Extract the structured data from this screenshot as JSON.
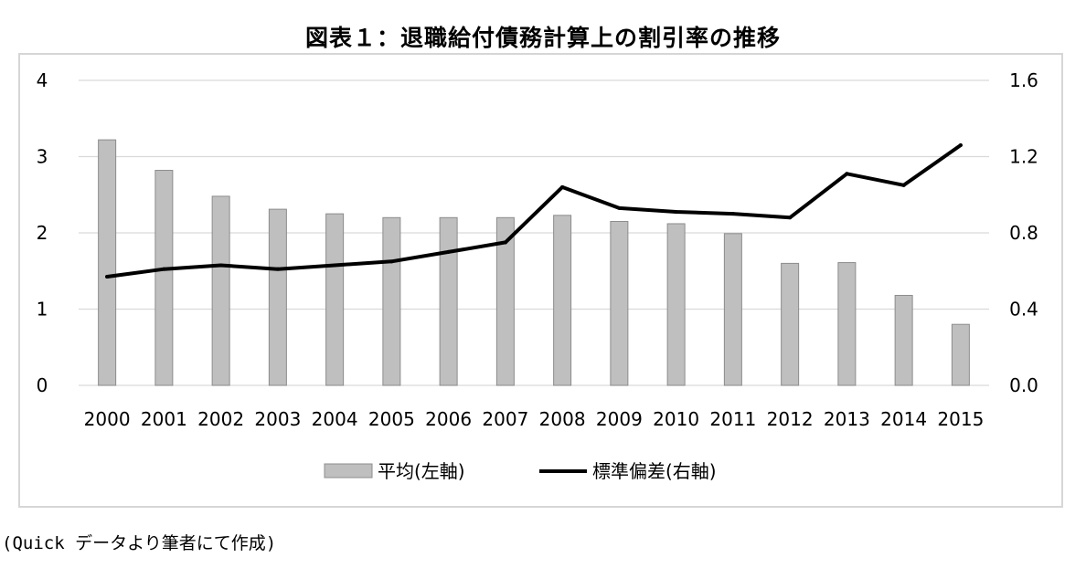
{
  "title": "図表１：退職給付債務計算上の割引率の推移",
  "source_note": "(Quick データより筆者にて作成)",
  "colors": {
    "bar": "#bfbfbf",
    "bar_stroke": "#8c8c8c",
    "line": "#000000",
    "grid": "#d9d9d9"
  },
  "chart_data": {
    "type": "bar+line",
    "categories": [
      "2000",
      "2001",
      "2002",
      "2003",
      "2004",
      "2005",
      "2006",
      "2007",
      "2008",
      "2009",
      "2010",
      "2011",
      "2012",
      "2013",
      "2014",
      "2015"
    ],
    "series": [
      {
        "name": "平均(左軸)",
        "type": "bar",
        "axis": "left",
        "values": [
          3.22,
          2.82,
          2.48,
          2.31,
          2.25,
          2.2,
          2.2,
          2.2,
          2.23,
          2.15,
          2.12,
          1.99,
          1.6,
          1.61,
          1.18,
          0.8
        ]
      },
      {
        "name": "標準偏差(右軸)",
        "type": "line",
        "axis": "right",
        "values": [
          0.57,
          0.61,
          0.63,
          0.61,
          0.63,
          0.65,
          0.7,
          0.75,
          1.04,
          0.93,
          0.91,
          0.9,
          0.88,
          1.11,
          1.05,
          1.26
        ]
      }
    ],
    "y_left": {
      "ylim": [
        0,
        4
      ],
      "ticks": [
        "0",
        "1",
        "2",
        "3",
        "4"
      ]
    },
    "y_right": {
      "ylim": [
        0,
        1.6
      ],
      "ticks": [
        "0.0",
        "0.4",
        "0.8",
        "1.2",
        "1.6"
      ]
    },
    "grid": true,
    "legend_position": "bottom"
  }
}
